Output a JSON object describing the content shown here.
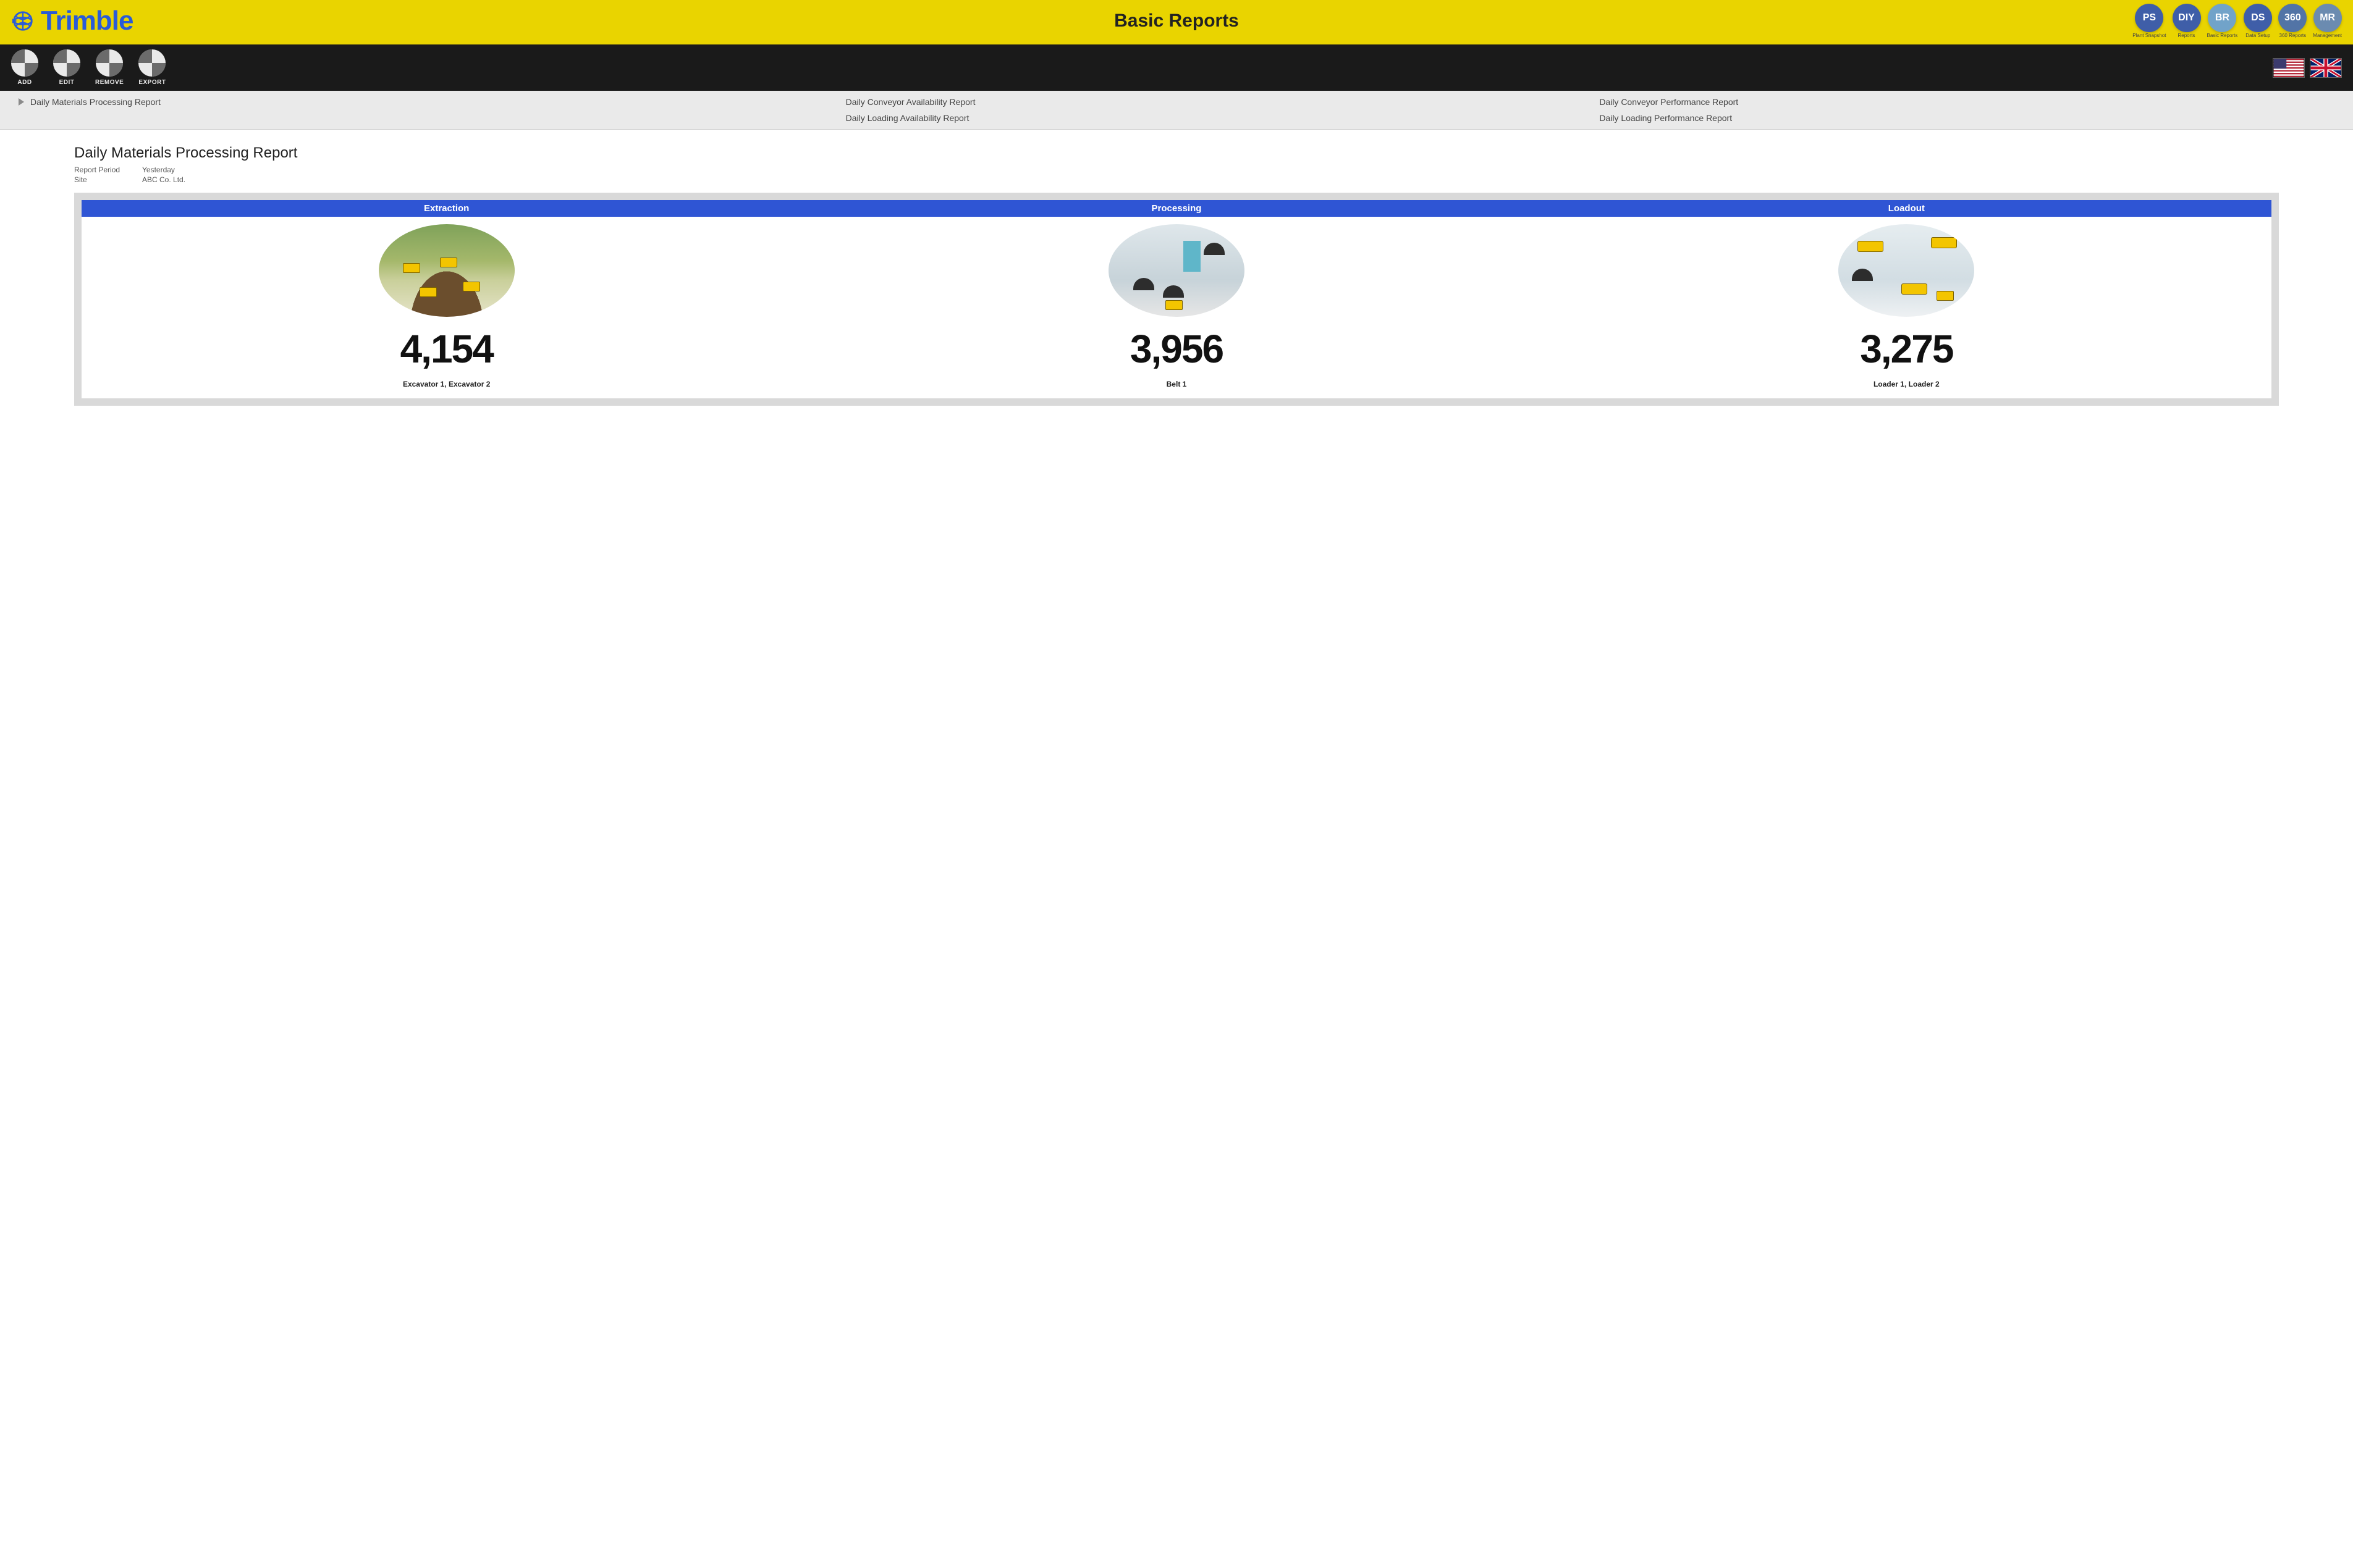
{
  "colors": {
    "header_bg": "#e9d400",
    "brand": "#2a5bd7",
    "toolbar_bg": "#1a1a1a",
    "panel_header_bg": "#2f55d4",
    "panel_border": "#d9d9d9",
    "nav_button_bg": "#3f5ea8",
    "nav_button_active_bg": "#71a3c9",
    "nav_button_alt_bg": "#5274a6"
  },
  "header": {
    "brand": "Trimble",
    "title": "Basic Reports",
    "nav": [
      {
        "code": "PS",
        "label": "Plant Snapshot",
        "bg": "#3f5ea8"
      },
      {
        "code": "DIY",
        "label": "Reports",
        "bg": "#3f5ea8"
      },
      {
        "code": "BR",
        "label": "Basic Reports",
        "bg": "#71a3c9"
      },
      {
        "code": "DS",
        "label": "Data Setup",
        "bg": "#3f5ea8"
      },
      {
        "code": "360",
        "label": "360 Reports",
        "bg": "#5274a6"
      },
      {
        "code": "MR",
        "label": "Management",
        "bg": "#6b8bb0"
      }
    ]
  },
  "toolbar": {
    "actions": [
      {
        "label": "ADD"
      },
      {
        "label": "EDIT"
      },
      {
        "label": "REMOVE"
      },
      {
        "label": "EXPORT"
      }
    ],
    "flags": [
      "US",
      "UK"
    ]
  },
  "reportTabs": {
    "active": "Daily Materials Processing Report",
    "items": [
      "Daily Materials Processing Report",
      "Daily Conveyor Availability Report",
      "Daily Conveyor Performance Report",
      "Daily Loading Availability Report",
      "Daily Loading Performance Report"
    ]
  },
  "report": {
    "title": "Daily Materials Processing Report",
    "meta": {
      "period_label": "Report Period",
      "period_value": "Yesterday",
      "site_label": "Site",
      "site_value": "ABC Co. Ltd."
    },
    "stages": [
      {
        "header": "Extraction",
        "value": "4,154",
        "equipment": "Excavator 1, Excavator 2",
        "illus": "extraction"
      },
      {
        "header": "Processing",
        "value": "3,956",
        "equipment": "Belt 1",
        "illus": "processing"
      },
      {
        "header": "Loadout",
        "value": "3,275",
        "equipment": "Loader 1, Loader 2",
        "illus": "loadout"
      }
    ]
  }
}
